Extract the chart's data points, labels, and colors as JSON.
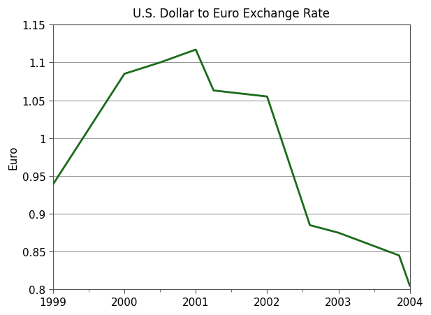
{
  "title": "U.S. Dollar to Euro Exchange Rate",
  "xlabel": "",
  "ylabel": "Euro",
  "x_values": [
    1999,
    2000,
    2000.5,
    2001,
    2001.25,
    2002,
    2002.6,
    2003,
    2003.85,
    2004
  ],
  "y_values": [
    0.939,
    1.085,
    1.1,
    1.117,
    1.063,
    1.055,
    0.885,
    0.875,
    0.845,
    0.805
  ],
  "line_color": "#1a6b1a",
  "line_width": 2.0,
  "xlim": [
    1999,
    2004
  ],
  "ylim": [
    0.8,
    1.15
  ],
  "yticks": [
    0.8,
    0.85,
    0.9,
    0.95,
    1.0,
    1.05,
    1.1,
    1.15
  ],
  "xticks": [
    1999,
    2000,
    2001,
    2002,
    2003,
    2004
  ],
  "grid_color": "#999999",
  "background_color": "#ffffff",
  "title_fontsize": 12,
  "axis_label_fontsize": 11,
  "tick_fontsize": 11
}
